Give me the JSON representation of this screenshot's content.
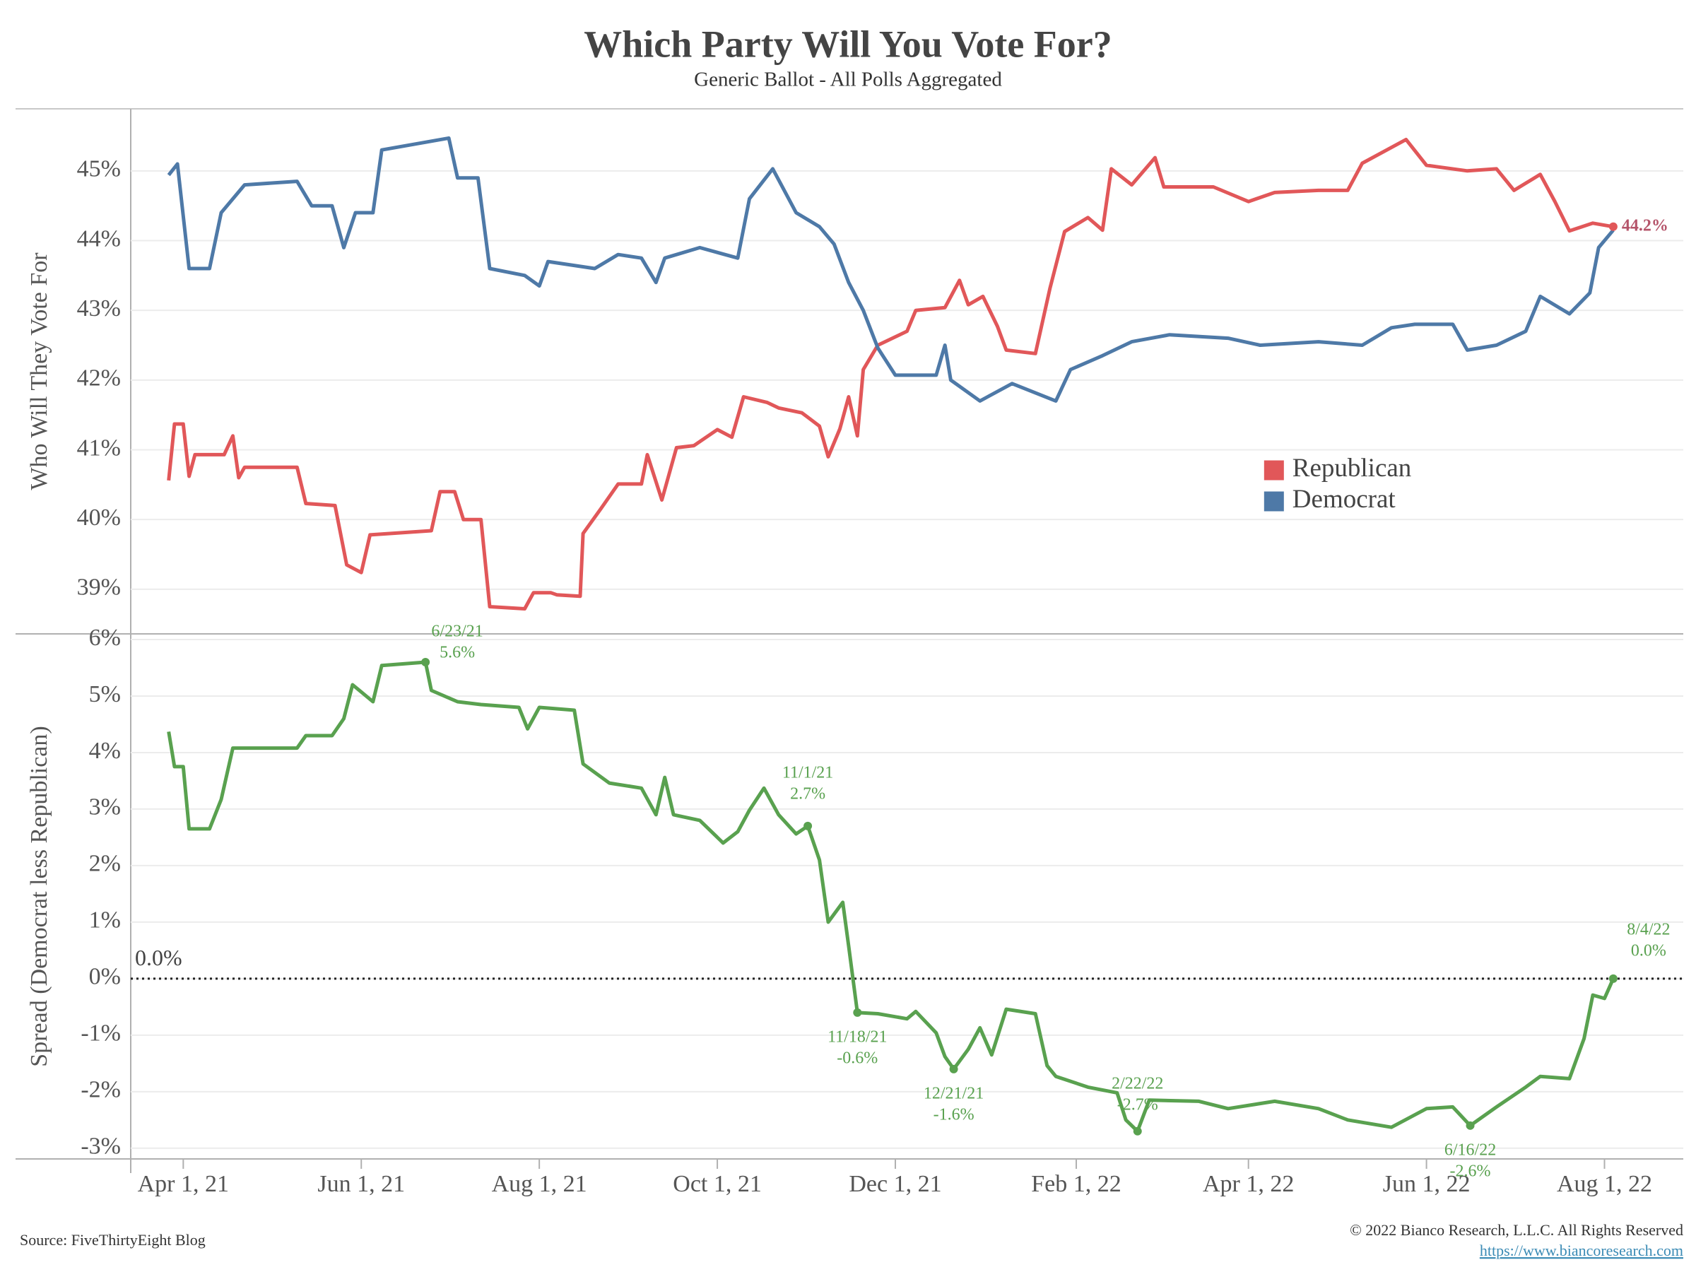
{
  "title": "Which Party Will You Vote For?",
  "subtitle": "Generic Ballot - All Polls Aggregated",
  "source": "Source: FiveThirtyEight Blog",
  "copyright": "© 2022 Bianco Research, L.L.C. All Rights Reserved",
  "url": "https://www.biancoresearch.com",
  "chart_data": [
    {
      "type": "line",
      "y_label": "Who Will They Vote For",
      "xlim": [
        "2021-03-14",
        "2022-08-28"
      ],
      "ylim": [
        38.36,
        45.89
      ],
      "yticks": [
        {
          "value": 39,
          "label": "39%"
        },
        {
          "value": 40,
          "label": "40%"
        },
        {
          "value": 41,
          "label": "41%"
        },
        {
          "value": 42,
          "label": "42%"
        },
        {
          "value": 43,
          "label": "43%"
        },
        {
          "value": 44,
          "label": "44%"
        },
        {
          "value": 45,
          "label": "45%"
        }
      ],
      "grid": true,
      "legend": "center right",
      "series": [
        {
          "name": "Republican",
          "color": "#e15759",
          "x": [
            "2021-03-27",
            "2021-03-29",
            "2021-04-01",
            "2021-04-03",
            "2021-04-05",
            "2021-04-15",
            "2021-04-18",
            "2021-04-20",
            "2021-04-22",
            "2021-05-10",
            "2021-05-13",
            "2021-05-23",
            "2021-05-27",
            "2021-06-01",
            "2021-06-04",
            "2021-06-25",
            "2021-06-28",
            "2021-07-03",
            "2021-07-06",
            "2021-07-12",
            "2021-07-15",
            "2021-07-27",
            "2021-07-30",
            "2021-08-05",
            "2021-08-07",
            "2021-08-15",
            "2021-08-16",
            "2021-08-22",
            "2021-08-28",
            "2021-09-05",
            "2021-09-07",
            "2021-09-12",
            "2021-09-17",
            "2021-09-23",
            "2021-10-01",
            "2021-10-06",
            "2021-10-10",
            "2021-10-18",
            "2021-10-22",
            "2021-10-30",
            "2021-11-05",
            "2021-11-08",
            "2021-11-12",
            "2021-11-15",
            "2021-11-18",
            "2021-11-20",
            "2021-11-25",
            "2021-12-05",
            "2021-12-08",
            "2021-12-18",
            "2021-12-23",
            "2021-12-26",
            "2021-12-31",
            "2022-01-05",
            "2022-01-08",
            "2022-01-18",
            "2022-01-23",
            "2022-01-28",
            "2022-02-05",
            "2022-02-10",
            "2022-02-13",
            "2022-02-20",
            "2022-02-28",
            "2022-03-03",
            "2022-03-20",
            "2022-04-01",
            "2022-04-10",
            "2022-04-25",
            "2022-05-05",
            "2022-05-10",
            "2022-05-25",
            "2022-06-01",
            "2022-06-15",
            "2022-06-25",
            "2022-07-01",
            "2022-07-10",
            "2022-07-15",
            "2022-07-20",
            "2022-07-28",
            "2022-08-04"
          ],
          "values": [
            40.56,
            41.37,
            41.37,
            40.62,
            40.93,
            40.93,
            41.2,
            40.6,
            40.75,
            40.75,
            40.23,
            40.2,
            39.35,
            39.24,
            39.78,
            39.84,
            40.4,
            40.4,
            40.0,
            40.0,
            38.75,
            38.72,
            38.95,
            38.95,
            38.92,
            38.9,
            39.8,
            40.15,
            40.51,
            40.51,
            40.93,
            40.28,
            41.03,
            41.06,
            41.29,
            41.18,
            41.76,
            41.68,
            41.6,
            41.53,
            41.34,
            40.9,
            41.3,
            41.76,
            41.2,
            42.15,
            42.5,
            42.7,
            43.0,
            43.04,
            43.43,
            43.08,
            43.2,
            42.77,
            42.43,
            42.38,
            43.32,
            44.13,
            44.33,
            44.15,
            45.03,
            44.8,
            45.19,
            44.77,
            44.77,
            44.56,
            44.69,
            44.72,
            44.72,
            45.11,
            45.45,
            45.08,
            45.0,
            45.03,
            44.72,
            44.95,
            44.56,
            44.14,
            44.25,
            44.2
          ]
        },
        {
          "name": "Democrat",
          "color": "#4e79a7",
          "x": [
            "2021-03-27",
            "2021-03-30",
            "2021-04-03",
            "2021-04-10",
            "2021-04-14",
            "2021-04-22",
            "2021-05-10",
            "2021-05-15",
            "2021-05-22",
            "2021-05-26",
            "2021-05-30",
            "2021-06-05",
            "2021-06-08",
            "2021-07-01",
            "2021-07-04",
            "2021-07-11",
            "2021-07-15",
            "2021-07-27",
            "2021-08-01",
            "2021-08-04",
            "2021-08-20",
            "2021-08-28",
            "2021-09-05",
            "2021-09-10",
            "2021-09-13",
            "2021-09-25",
            "2021-10-08",
            "2021-10-12",
            "2021-10-20",
            "2021-10-28",
            "2021-11-05",
            "2021-11-10",
            "2021-11-15",
            "2021-11-20",
            "2021-11-25",
            "2021-12-01",
            "2021-12-15",
            "2021-12-18",
            "2021-12-20",
            "2021-12-30",
            "2022-01-10",
            "2022-01-25",
            "2022-01-30",
            "2022-02-10",
            "2022-02-20",
            "2022-03-05",
            "2022-03-25",
            "2022-04-05",
            "2022-04-25",
            "2022-05-10",
            "2022-05-20",
            "2022-05-28",
            "2022-06-10",
            "2022-06-15",
            "2022-06-25",
            "2022-07-05",
            "2022-07-10",
            "2022-07-20",
            "2022-07-27",
            "2022-07-30",
            "2022-08-04"
          ],
          "values": [
            44.94,
            45.1,
            43.6,
            43.6,
            44.4,
            44.8,
            44.85,
            44.5,
            44.5,
            43.9,
            44.4,
            44.4,
            45.3,
            45.47,
            44.9,
            44.9,
            43.6,
            43.5,
            43.35,
            43.7,
            43.6,
            43.8,
            43.75,
            43.4,
            43.75,
            43.9,
            43.75,
            44.6,
            45.03,
            44.4,
            44.2,
            43.95,
            43.4,
            43.0,
            42.46,
            42.07,
            42.07,
            42.5,
            42.0,
            41.7,
            41.95,
            41.7,
            42.15,
            42.35,
            42.55,
            42.65,
            42.6,
            42.5,
            42.55,
            42.5,
            42.75,
            42.8,
            42.8,
            42.43,
            42.5,
            42.7,
            43.2,
            42.95,
            43.25,
            43.9,
            44.15
          ]
        }
      ],
      "annotations": [
        {
          "x": "2022-08-04",
          "value": 44.2,
          "label": "44.2%"
        }
      ]
    },
    {
      "type": "line",
      "y_label": "Spread (Democrat less Republican)",
      "xlim": [
        "2021-03-14",
        "2022-08-28"
      ],
      "ylim": [
        -3.19,
        6.1
      ],
      "yticks": [
        {
          "value": -3,
          "label": "-3%"
        },
        {
          "value": -2,
          "label": "-2%"
        },
        {
          "value": -1,
          "label": "-1%"
        },
        {
          "value": 0,
          "label": "0%"
        },
        {
          "value": 1,
          "label": "1%"
        },
        {
          "value": 2,
          "label": "2%"
        },
        {
          "value": 3,
          "label": "3%"
        },
        {
          "value": 4,
          "label": "4%"
        },
        {
          "value": 5,
          "label": "5%"
        },
        {
          "value": 6,
          "label": "6%"
        }
      ],
      "xticks": [
        {
          "value": "2021-04-01",
          "label": "Apr 1, 21"
        },
        {
          "value": "2021-06-01",
          "label": "Jun 1, 21"
        },
        {
          "value": "2021-08-01",
          "label": "Aug 1, 21"
        },
        {
          "value": "2021-10-01",
          "label": "Oct 1, 21"
        },
        {
          "value": "2021-12-01",
          "label": "Dec 1, 21"
        },
        {
          "value": "2022-02-01",
          "label": "Feb 1, 22"
        },
        {
          "value": "2022-04-01",
          "label": "Apr 1, 22"
        },
        {
          "value": "2022-06-01",
          "label": "Jun 1, 22"
        },
        {
          "value": "2022-08-01",
          "label": "Aug 1, 22"
        }
      ],
      "grid": true,
      "reference_line": {
        "value": 0,
        "label": "0.0%"
      },
      "series": [
        {
          "color": "#59a14f",
          "x": [
            "2021-03-27",
            "2021-03-29",
            "2021-04-01",
            "2021-04-03",
            "2021-04-10",
            "2021-04-14",
            "2021-04-18",
            "2021-05-10",
            "2021-05-13",
            "2021-05-22",
            "2021-05-26",
            "2021-05-29",
            "2021-06-05",
            "2021-06-08",
            "2021-06-23",
            "2021-06-25",
            "2021-07-04",
            "2021-07-12",
            "2021-07-25",
            "2021-07-28",
            "2021-08-01",
            "2021-08-13",
            "2021-08-16",
            "2021-08-25",
            "2021-09-05",
            "2021-09-10",
            "2021-09-13",
            "2021-09-16",
            "2021-09-25",
            "2021-10-03",
            "2021-10-08",
            "2021-10-12",
            "2021-10-17",
            "2021-10-22",
            "2021-10-28",
            "2021-11-01",
            "2021-11-05",
            "2021-11-08",
            "2021-11-13",
            "2021-11-15",
            "2021-11-18",
            "2021-11-25",
            "2021-12-05",
            "2021-12-08",
            "2021-12-15",
            "2021-12-18",
            "2021-12-21",
            "2021-12-26",
            "2021-12-30",
            "2022-01-03",
            "2022-01-08",
            "2022-01-18",
            "2022-01-22",
            "2022-01-25",
            "2022-02-05",
            "2022-02-15",
            "2022-02-18",
            "2022-02-22",
            "2022-02-26",
            "2022-03-15",
            "2022-03-25",
            "2022-04-10",
            "2022-04-25",
            "2022-05-05",
            "2022-05-20",
            "2022-06-01",
            "2022-06-10",
            "2022-06-16",
            "2022-06-25",
            "2022-07-05",
            "2022-07-10",
            "2022-07-20",
            "2022-07-25",
            "2022-07-28",
            "2022-08-01",
            "2022-08-04"
          ],
          "values": [
            4.37,
            3.75,
            3.75,
            2.65,
            2.65,
            3.17,
            4.08,
            4.08,
            4.3,
            4.3,
            4.6,
            5.2,
            4.9,
            5.54,
            5.6,
            5.1,
            4.9,
            4.85,
            4.8,
            4.42,
            4.8,
            4.75,
            3.8,
            3.46,
            3.37,
            2.9,
            3.56,
            2.9,
            2.8,
            2.4,
            2.6,
            2.98,
            3.37,
            2.9,
            2.56,
            2.7,
            2.1,
            1.0,
            1.35,
            0.58,
            -0.6,
            -0.62,
            -0.71,
            -0.58,
            -0.96,
            -1.38,
            -1.6,
            -1.25,
            -0.87,
            -1.35,
            -0.54,
            -0.62,
            -1.54,
            -1.73,
            -1.92,
            -2.02,
            -2.5,
            -2.7,
            -2.15,
            -2.17,
            -2.3,
            -2.17,
            -2.3,
            -2.5,
            -2.63,
            -2.3,
            -2.27,
            -2.6,
            -2.27,
            -1.92,
            -1.73,
            -1.77,
            -1.06,
            -0.29,
            -0.35,
            0.0
          ]
        }
      ],
      "annotations": [
        {
          "x": "2021-06-23",
          "value": 5.6,
          "date_label": "6/23/21",
          "label": "5.6%"
        },
        {
          "x": "2021-11-01",
          "value": 2.7,
          "date_label": "11/1/21",
          "label": "2.7%"
        },
        {
          "x": "2021-11-18",
          "value": -0.6,
          "date_label": "11/18/21",
          "label": "-0.6%"
        },
        {
          "x": "2021-12-21",
          "value": -1.6,
          "date_label": "12/21/21",
          "label": "-1.6%"
        },
        {
          "x": "2022-02-22",
          "value": -2.7,
          "date_label": "2/22/22",
          "label": "-2.7%"
        },
        {
          "x": "2022-06-16",
          "value": -2.6,
          "date_label": "6/16/22",
          "label": "-2.6%"
        },
        {
          "x": "2022-08-04",
          "value": 0.0,
          "date_label": "8/4/22",
          "label": "0.0%"
        }
      ]
    }
  ]
}
